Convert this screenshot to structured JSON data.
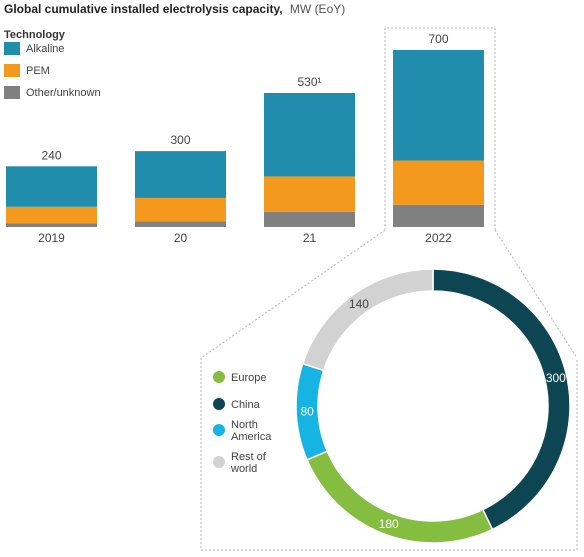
{
  "colors": {
    "alkaline": "#1f8dab",
    "pem": "#f39a1e",
    "other": "#808080",
    "europe": "#84bd3f",
    "china": "#0d4552",
    "north_america": "#16b4e3",
    "rest_of_world": "#d2d2d2"
  },
  "header": {
    "title": "Global cumulative installed electrolysis capacity,",
    "unit": "MW (EoY)"
  },
  "legend": {
    "title": "Technology",
    "items": [
      {
        "label": "Alkaline",
        "color": "#1f8dab"
      },
      {
        "label": "PEM",
        "color": "#f39a1e"
      },
      {
        "label": "Other/unknown",
        "color": "#808080"
      }
    ]
  },
  "chart_data": [
    {
      "type": "bar",
      "stacked": true,
      "categories": [
        "2019",
        "20",
        "21",
        "2022"
      ],
      "totals": [
        "240",
        "300",
        "530¹",
        "700"
      ],
      "series": [
        {
          "name": "Other/unknown",
          "values": [
            15,
            22,
            60,
            88
          ]
        },
        {
          "name": "PEM",
          "values": [
            65,
            93,
            140,
            175
          ]
        },
        {
          "name": "Alkaline",
          "values": [
            160,
            185,
            330,
            437
          ]
        }
      ],
      "ylim": [
        0,
        700
      ]
    },
    {
      "type": "pie",
      "variant": "donut",
      "labels": [
        "China",
        "Europe",
        "North America",
        "Rest of world"
      ],
      "values": [
        300,
        180,
        80,
        140
      ],
      "value_labels": [
        "300",
        "180",
        "80",
        "140"
      ],
      "legend": [
        {
          "line1": "Europe",
          "line2": "",
          "color": "#84bd3f"
        },
        {
          "line1": "China",
          "line2": "",
          "color": "#0d4552"
        },
        {
          "line1": "North",
          "line2": "America",
          "color": "#16b4e3"
        },
        {
          "line1": "Rest of",
          "line2": "world",
          "color": "#d2d2d2"
        }
      ]
    }
  ]
}
